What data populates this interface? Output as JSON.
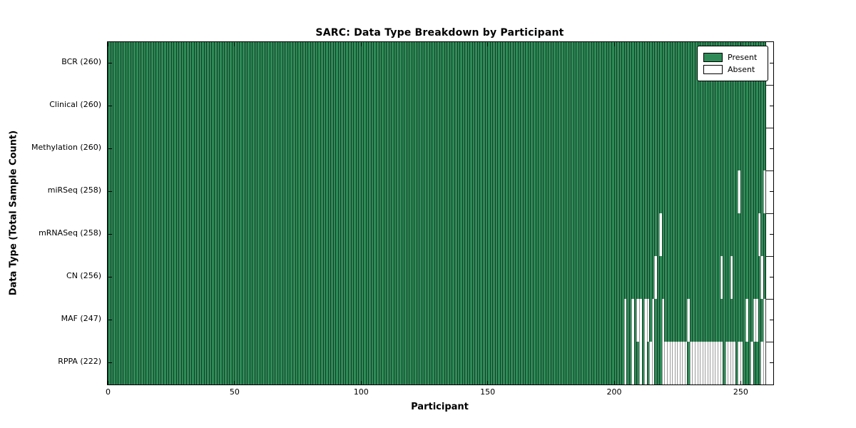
{
  "chart_data": {
    "type": "heatmap",
    "title": "SARC: Data Type Breakdown by Participant",
    "xlabel": "Participant",
    "ylabel": "Data Type (Total Sample Count)",
    "n_participants": 260,
    "x_ticks": [
      0,
      50,
      100,
      150,
      200,
      250
    ],
    "xlim": [
      0,
      263
    ],
    "grid": false,
    "legend": {
      "position": "upper-right",
      "entries": [
        {
          "label": "Present",
          "color": "#2E8B57"
        },
        {
          "label": "Absent",
          "color": "#FFFFFF"
        }
      ]
    },
    "colors": {
      "present": "#2E8B57",
      "absent": "#FFFFFF",
      "bar_edge": "rgba(0,0,0,0.55)",
      "spine": "#000000"
    },
    "rows": [
      {
        "key": "bcr",
        "label": "BCR (260)",
        "data_type": "BCR",
        "total": 260,
        "absent_participants": []
      },
      {
        "key": "clinical",
        "label": "Clinical (260)",
        "data_type": "Clinical",
        "total": 260,
        "absent_participants": []
      },
      {
        "key": "methylation",
        "label": "Methylation (260)",
        "data_type": "Methylation",
        "total": 260,
        "absent_participants": []
      },
      {
        "key": "mirseq",
        "label": "miRSeq (258)",
        "data_type": "miRSeq",
        "total": 258,
        "absent_participants": [
          249,
          259
        ]
      },
      {
        "key": "mrnaseq",
        "label": "mRNASeq (258)",
        "data_type": "mRNASeq",
        "total": 258,
        "absent_participants": [
          218,
          257
        ]
      },
      {
        "key": "cn",
        "label": "CN (256)",
        "data_type": "CN",
        "total": 256,
        "absent_participants": [
          216,
          242,
          246,
          258
        ]
      },
      {
        "key": "maf",
        "label": "MAF (247)",
        "data_type": "MAF",
        "total": 247,
        "absent_participants": [
          204,
          207,
          209,
          210,
          212,
          213,
          215,
          219,
          229,
          252,
          255,
          256,
          259
        ]
      },
      {
        "key": "rppa",
        "label": "RPPA (222)",
        "data_type": "RPPA",
        "total": 222,
        "absent_participants": [
          204,
          207,
          210,
          212,
          214,
          215,
          219,
          220,
          221,
          222,
          223,
          224,
          225,
          226,
          227,
          228,
          230,
          231,
          232,
          233,
          234,
          235,
          236,
          237,
          238,
          239,
          240,
          241,
          242,
          244,
          245,
          246,
          247,
          249,
          250,
          254,
          258,
          259
        ]
      }
    ]
  }
}
